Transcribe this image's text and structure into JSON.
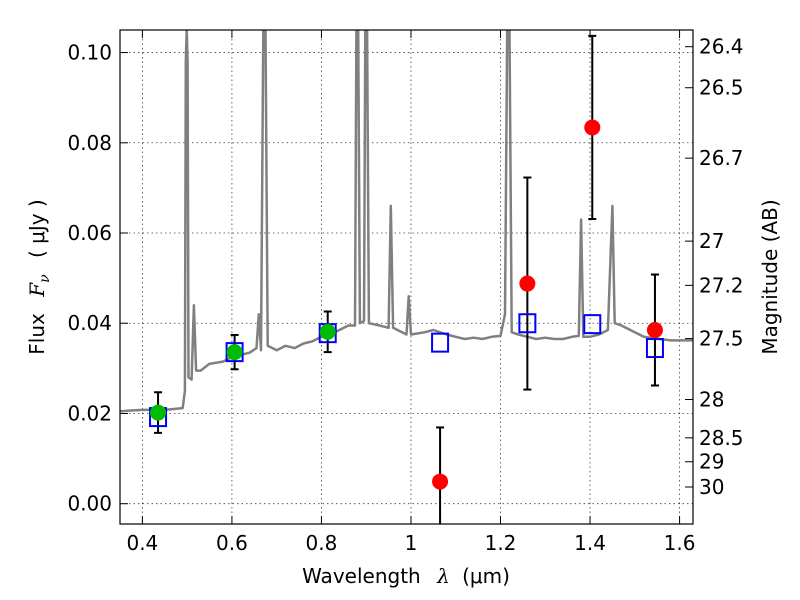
{
  "chart_data": {
    "type": "scatter",
    "xlabel": "Wavelength",
    "xlabel_symbol": "λ",
    "xlabel_unit": "(μm)",
    "ylabel": "Flux",
    "ylabel_symbol": "F",
    "ylabel_subscript": "ν",
    "ylabel_unit": "( μJy )",
    "y2label": "Magnitude (AB)",
    "xlim": [
      0.35,
      1.63
    ],
    "ylim": [
      -0.0045,
      0.105
    ],
    "grid": true,
    "x_ticks": [
      0.4,
      0.6,
      0.8,
      1.0,
      1.2,
      1.4,
      1.6
    ],
    "x_tick_labels": [
      "0.4",
      "0.6",
      "0.8",
      "1",
      "1.2",
      "1.4",
      "1.6"
    ],
    "y_ticks": [
      0.0,
      0.02,
      0.04,
      0.06,
      0.08,
      0.1
    ],
    "y_tick_labels": [
      "0.00",
      "0.02",
      "0.04",
      "0.06",
      "0.08",
      "0.10"
    ],
    "y2_ticks": [
      {
        "label": "26.4",
        "flux": 0.1013
      },
      {
        "label": "26.5",
        "flux": 0.0922
      },
      {
        "label": "26.7",
        "flux": 0.0766
      },
      {
        "label": "27",
        "flux": 0.0582
      },
      {
        "label": "27.2",
        "flux": 0.0484
      },
      {
        "label": "27.5",
        "flux": 0.0366
      },
      {
        "label": "28",
        "flux": 0.0231
      },
      {
        "label": "28.5",
        "flux": 0.0146
      },
      {
        "label": "29",
        "flux": 0.0093
      },
      {
        "label": "30",
        "flux": 0.0037
      }
    ],
    "series": [
      {
        "kind": "spectrum",
        "color": "#808080",
        "points": [
          [
            0.35,
            0.0205
          ],
          [
            0.4,
            0.0208
          ],
          [
            0.45,
            0.0208
          ],
          [
            0.49,
            0.0212
          ],
          [
            0.495,
            0.025
          ],
          [
            0.497,
            0.098
          ],
          [
            0.499,
            0.105
          ],
          [
            0.501,
            0.098
          ],
          [
            0.503,
            0.028
          ],
          [
            0.51,
            0.0275
          ],
          [
            0.515,
            0.044
          ],
          [
            0.52,
            0.0295
          ],
          [
            0.53,
            0.0295
          ],
          [
            0.55,
            0.031
          ],
          [
            0.58,
            0.0315
          ],
          [
            0.6,
            0.0325
          ],
          [
            0.62,
            0.033
          ],
          [
            0.64,
            0.0335
          ],
          [
            0.655,
            0.0345
          ],
          [
            0.66,
            0.042
          ],
          [
            0.665,
            0.034
          ],
          [
            0.67,
            0.105
          ],
          [
            0.675,
            0.105
          ],
          [
            0.68,
            0.035
          ],
          [
            0.7,
            0.034
          ],
          [
            0.72,
            0.035
          ],
          [
            0.74,
            0.0345
          ],
          [
            0.76,
            0.0355
          ],
          [
            0.78,
            0.036
          ],
          [
            0.8,
            0.037
          ],
          [
            0.83,
            0.038
          ],
          [
            0.86,
            0.0395
          ],
          [
            0.875,
            0.0395
          ],
          [
            0.878,
            0.105
          ],
          [
            0.882,
            0.105
          ],
          [
            0.886,
            0.04
          ],
          [
            0.895,
            0.0405
          ],
          [
            0.898,
            0.105
          ],
          [
            0.902,
            0.105
          ],
          [
            0.906,
            0.04
          ],
          [
            0.93,
            0.0395
          ],
          [
            0.95,
            0.039
          ],
          [
            0.955,
            0.066
          ],
          [
            0.96,
            0.039
          ],
          [
            0.98,
            0.038
          ],
          [
            0.99,
            0.0375
          ],
          [
            0.995,
            0.046
          ],
          [
            1.0,
            0.0375
          ],
          [
            1.03,
            0.038
          ],
          [
            1.05,
            0.0385
          ],
          [
            1.08,
            0.0375
          ],
          [
            1.1,
            0.037
          ],
          [
            1.12,
            0.0365
          ],
          [
            1.14,
            0.0368
          ],
          [
            1.16,
            0.0365
          ],
          [
            1.18,
            0.037
          ],
          [
            1.2,
            0.0372
          ],
          [
            1.21,
            0.042
          ],
          [
            1.215,
            0.105
          ],
          [
            1.22,
            0.105
          ],
          [
            1.225,
            0.038
          ],
          [
            1.24,
            0.0375
          ],
          [
            1.26,
            0.037
          ],
          [
            1.28,
            0.0365
          ],
          [
            1.3,
            0.0368
          ],
          [
            1.32,
            0.0365
          ],
          [
            1.34,
            0.0365
          ],
          [
            1.36,
            0.037
          ],
          [
            1.375,
            0.0372
          ],
          [
            1.38,
            0.063
          ],
          [
            1.385,
            0.037
          ],
          [
            1.4,
            0.037
          ],
          [
            1.42,
            0.0375
          ],
          [
            1.44,
            0.0385
          ],
          [
            1.45,
            0.066
          ],
          [
            1.455,
            0.04
          ],
          [
            1.47,
            0.0395
          ],
          [
            1.5,
            0.038
          ],
          [
            1.52,
            0.037
          ],
          [
            1.55,
            0.0366
          ],
          [
            1.58,
            0.0362
          ],
          [
            1.63,
            0.0362
          ]
        ]
      },
      {
        "kind": "green-points",
        "color": "#00bb00",
        "points": [
          {
            "x": 0.435,
            "y": 0.0202,
            "err": 0.0045
          },
          {
            "x": 0.606,
            "y": 0.0336,
            "err": 0.0038
          },
          {
            "x": 0.814,
            "y": 0.0381,
            "err": 0.0045
          }
        ]
      },
      {
        "kind": "red-points",
        "color": "#ff0000",
        "points": [
          {
            "x": 1.065,
            "y": 0.0049,
            "err": 0.012
          },
          {
            "x": 1.26,
            "y": 0.0488,
            "err": 0.0235
          },
          {
            "x": 1.405,
            "y": 0.0834,
            "err": 0.0203
          },
          {
            "x": 1.545,
            "y": 0.0385,
            "err": 0.0123
          }
        ]
      },
      {
        "kind": "blue-squares",
        "color": "#0000ff",
        "points": [
          {
            "x": 0.435,
            "y": 0.0192
          },
          {
            "x": 0.606,
            "y": 0.0336
          },
          {
            "x": 0.814,
            "y": 0.0378
          },
          {
            "x": 1.065,
            "y": 0.0357
          },
          {
            "x": 1.26,
            "y": 0.04
          },
          {
            "x": 1.405,
            "y": 0.0398
          },
          {
            "x": 1.545,
            "y": 0.0345
          }
        ]
      }
    ]
  }
}
